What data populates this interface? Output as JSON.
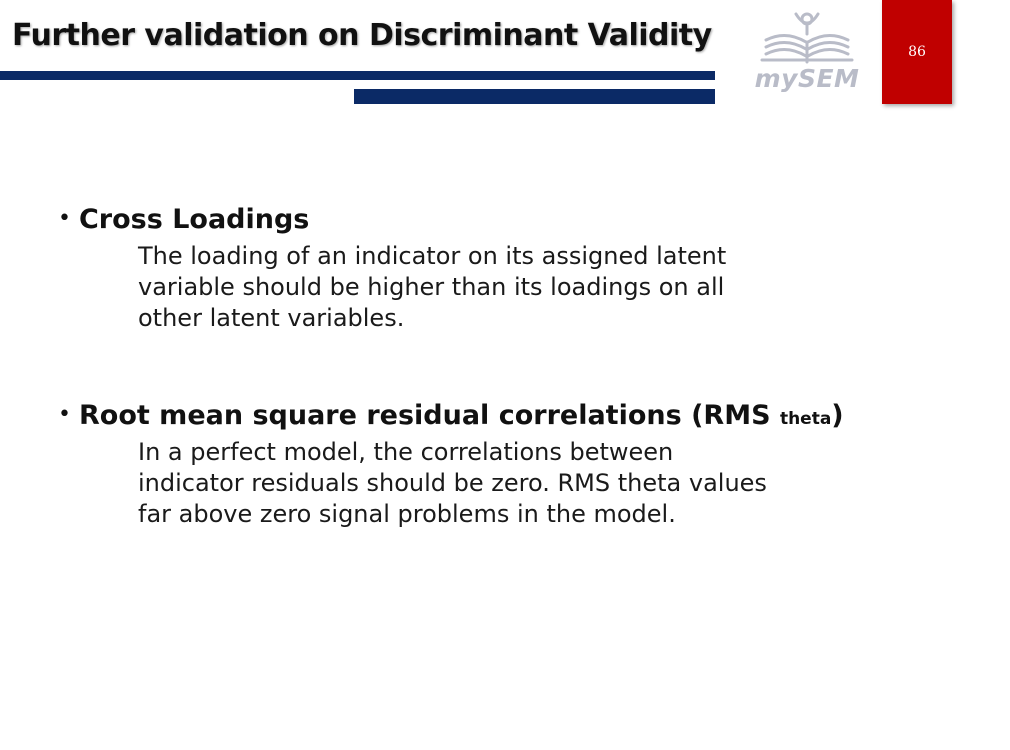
{
  "slide": {
    "title": "Further validation on Discriminant Validity",
    "page_number": "86",
    "logo_text": "mySEM"
  },
  "bullets": [
    {
      "heading": "Cross Loadings",
      "lines": [
        "The loading of an indicator on its assigned latent",
        "variable should be higher than its loadings on all",
        "other latent variables."
      ]
    },
    {
      "heading": "Root mean square residual correlations (RMS",
      "subscript": "theta",
      "heading_end": ")",
      "lines": [
        "In a perfect model, the correlations between",
        "indicator residuals should be zero. RMS theta values",
        "far above zero signal problems in the model."
      ]
    }
  ],
  "colors": {
    "navy_bar": "#0b2a66",
    "page_box": "#c00000",
    "logo_gray": "#b9bcc8"
  },
  "icons": {
    "logo": "open-book-with-figure-icon"
  }
}
